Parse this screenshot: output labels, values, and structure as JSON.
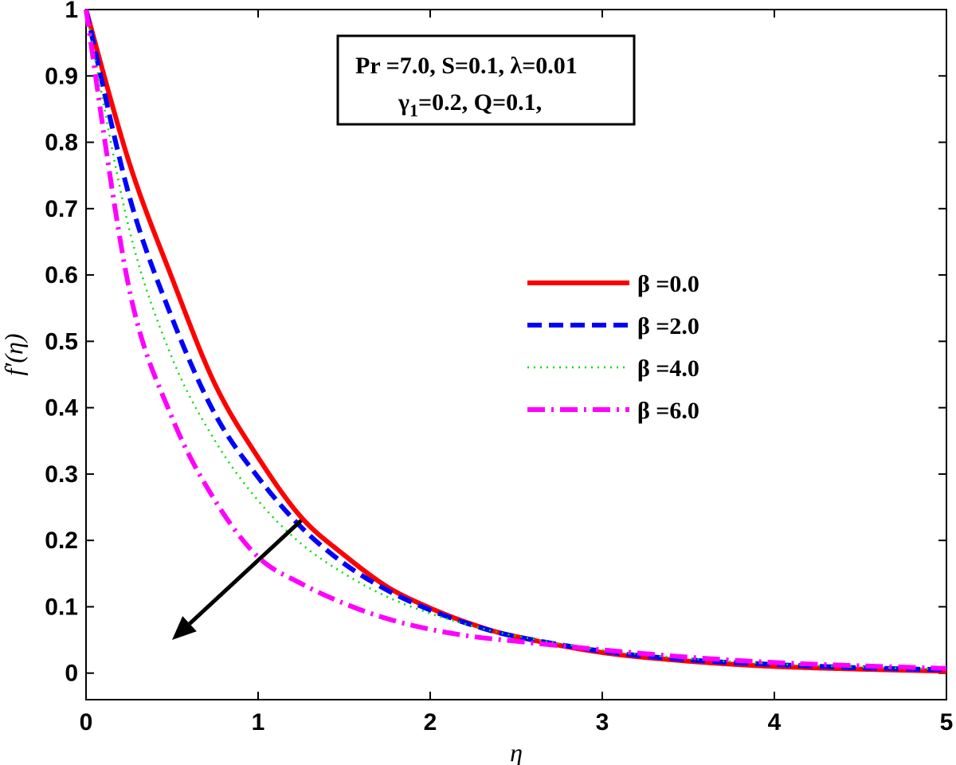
{
  "chart_data": {
    "type": "line",
    "xlabel": "η",
    "ylabel": "f′(η)",
    "xlim": [
      0,
      5
    ],
    "ylim": [
      -0.04,
      1
    ],
    "x_ticks": [
      0,
      1,
      2,
      3,
      4,
      5
    ],
    "y_ticks": [
      0,
      0.1,
      0.2,
      0.3,
      0.4,
      0.5,
      0.6,
      0.7,
      0.8,
      0.9,
      1
    ],
    "x_tick_labels": [
      "0",
      "1",
      "2",
      "3",
      "4",
      "5"
    ],
    "y_tick_labels": [
      "0",
      "0.1",
      "0.2",
      "0.3",
      "0.4",
      "0.5",
      "0.6",
      "0.7",
      "0.8",
      "0.9",
      "1"
    ],
    "grid": false,
    "legend_position": "right-middle",
    "annotation": {
      "line1": "Pr =7.0, S=0.1, λ=0.01",
      "line2_symbol": "γ",
      "line2_sub": "1",
      "line2_rest": "=0.2, Q=0.1,"
    },
    "arrow": {
      "from": [
        1.25,
        0.23
      ],
      "to": [
        0.5,
        0.05
      ],
      "meaning": "increasing β"
    },
    "x": [
      0,
      0.25,
      0.5,
      0.75,
      1,
      1.25,
      1.5,
      1.75,
      2,
      2.25,
      2.5,
      3,
      3.5,
      4,
      4.5,
      5
    ],
    "series": [
      {
        "name": "β =0.0",
        "color": "#ff0000",
        "style": "solid",
        "values": [
          1.0,
          0.77,
          0.595,
          0.435,
          0.325,
          0.235,
          0.178,
          0.13,
          0.098,
          0.073,
          0.055,
          0.031,
          0.018,
          0.01,
          0.006,
          0.003
        ]
      },
      {
        "name": "β =2.0",
        "color": "#0000ff",
        "style": "dashed",
        "values": [
          1.0,
          0.72,
          0.535,
          0.39,
          0.295,
          0.22,
          0.165,
          0.125,
          0.095,
          0.072,
          0.055,
          0.033,
          0.02,
          0.013,
          0.008,
          0.005
        ]
      },
      {
        "name": "β =4.0",
        "color": "#00dd00",
        "style": "dotted",
        "values": [
          1.0,
          0.67,
          0.475,
          0.35,
          0.26,
          0.195,
          0.15,
          0.115,
          0.09,
          0.071,
          0.056,
          0.035,
          0.022,
          0.014,
          0.009,
          0.006
        ]
      },
      {
        "name": "β =6.0",
        "color": "#ff00ff",
        "style": "dashdot",
        "values": [
          1.0,
          0.58,
          0.385,
          0.26,
          0.175,
          0.135,
          0.105,
          0.082,
          0.066,
          0.055,
          0.048,
          0.035,
          0.024,
          0.016,
          0.011,
          0.007
        ]
      }
    ]
  }
}
